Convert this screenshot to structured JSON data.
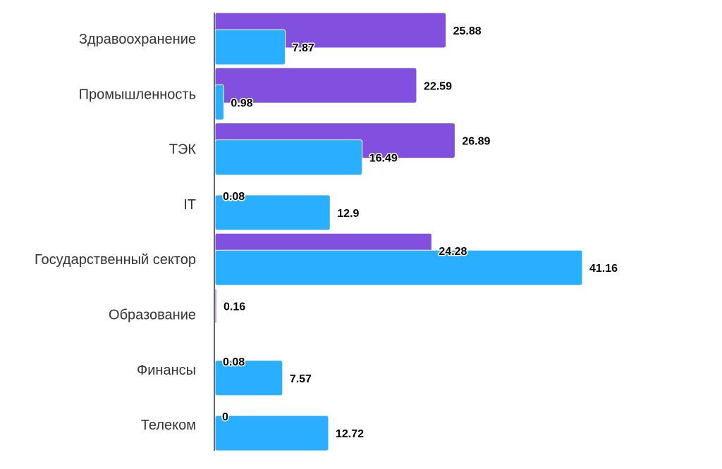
{
  "chart_data": {
    "type": "bar",
    "orientation": "horizontal",
    "categories": [
      "Здравоохранение",
      "Промышленность",
      "ТЭК",
      "IT",
      "Государственный сектор",
      "Образование",
      "Финансы",
      "Телеком"
    ],
    "series": [
      {
        "color": "#8250df",
        "values": [
          25.88,
          22.59,
          26.89,
          0.08,
          24.28,
          0.16,
          0.08,
          0
        ]
      },
      {
        "color": "#2aaeff",
        "values": [
          7.87,
          0.98,
          16.49,
          12.9,
          41.16,
          0,
          7.57,
          12.72
        ]
      }
    ],
    "data_labels": [
      [
        "25.88",
        "22.59",
        "26.89",
        "0.08",
        "24.28",
        "0.16",
        "0.08",
        "0"
      ],
      [
        "7.87",
        "0.98",
        "16.49",
        "12.9",
        "41.16",
        "",
        "7.57",
        "12.72"
      ]
    ],
    "xlim": [
      0,
      41.16
    ],
    "grid": false,
    "legend": false
  }
}
